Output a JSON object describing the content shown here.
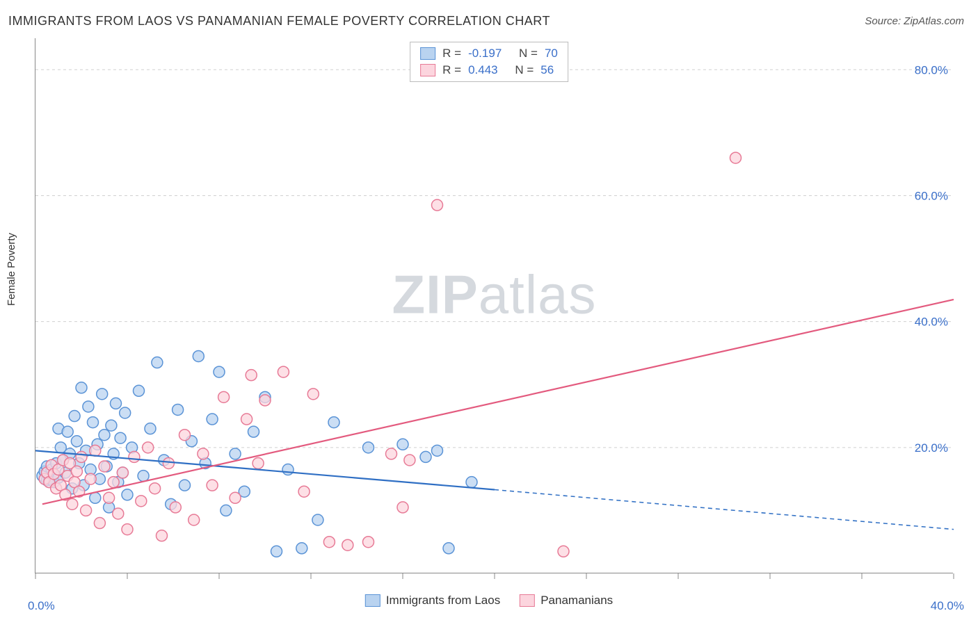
{
  "title": "IMMIGRANTS FROM LAOS VS PANAMANIAN FEMALE POVERTY CORRELATION CHART",
  "source_label": "Source:",
  "source_name": "ZipAtlas.com",
  "ylabel": "Female Poverty",
  "watermark_a": "ZIP",
  "watermark_b": "atlas",
  "chart": {
    "type": "scatter",
    "background_color": "#ffffff",
    "grid_color": "#d0d0d0",
    "axis_color": "#888888",
    "tick_label_color": "#3a6fc9",
    "xlim": [
      0,
      40
    ],
    "ylim": [
      0,
      85
    ],
    "y_ticks": [
      20,
      40,
      60,
      80
    ],
    "y_tick_labels": [
      "20.0%",
      "40.0%",
      "60.0%",
      "80.0%"
    ],
    "x_tick_positions": [
      0,
      4,
      8,
      12,
      16,
      20,
      24,
      28,
      32,
      36,
      40
    ],
    "x_tick_labels": {
      "0": "0.0%",
      "40": "40.0%"
    },
    "marker_radius": 8,
    "marker_stroke_width": 1.5,
    "trend_line_width": 2.2,
    "series": [
      {
        "name": "Immigrants from Laos",
        "legend_label": "Immigrants from Laos",
        "fill_color": "#b9d3f0",
        "stroke_color": "#5a93d6",
        "line_color": "#2f6fc4",
        "R": "-0.197",
        "N": "70",
        "trend": {
          "x1": 0,
          "y1": 19.5,
          "x2": 20,
          "y2": 13.3,
          "dash_x2": 40,
          "dash_y2": 7.0
        },
        "points": [
          [
            0.3,
            15.5
          ],
          [
            0.4,
            16.2
          ],
          [
            0.5,
            14.8
          ],
          [
            0.5,
            17.0
          ],
          [
            0.6,
            15.0
          ],
          [
            0.7,
            16.5
          ],
          [
            0.8,
            14.5
          ],
          [
            0.9,
            17.5
          ],
          [
            1.0,
            15.2
          ],
          [
            1.0,
            23.0
          ],
          [
            1.1,
            20.0
          ],
          [
            1.2,
            18.0
          ],
          [
            1.3,
            16.0
          ],
          [
            1.4,
            22.5
          ],
          [
            1.5,
            19.0
          ],
          [
            1.6,
            13.5
          ],
          [
            1.7,
            25.0
          ],
          [
            1.8,
            21.0
          ],
          [
            1.9,
            17.5
          ],
          [
            2.0,
            29.5
          ],
          [
            2.1,
            14.0
          ],
          [
            2.2,
            19.5
          ],
          [
            2.3,
            26.5
          ],
          [
            2.4,
            16.5
          ],
          [
            2.5,
            24.0
          ],
          [
            2.6,
            12.0
          ],
          [
            2.7,
            20.5
          ],
          [
            2.8,
            15.0
          ],
          [
            2.9,
            28.5
          ],
          [
            3.0,
            22.0
          ],
          [
            3.1,
            17.0
          ],
          [
            3.2,
            10.5
          ],
          [
            3.3,
            23.5
          ],
          [
            3.4,
            19.0
          ],
          [
            3.5,
            27.0
          ],
          [
            3.6,
            14.5
          ],
          [
            3.7,
            21.5
          ],
          [
            3.8,
            16.0
          ],
          [
            3.9,
            25.5
          ],
          [
            4.0,
            12.5
          ],
          [
            4.2,
            20.0
          ],
          [
            4.5,
            29.0
          ],
          [
            4.7,
            15.5
          ],
          [
            5.0,
            23.0
          ],
          [
            5.3,
            33.5
          ],
          [
            5.6,
            18.0
          ],
          [
            5.9,
            11.0
          ],
          [
            6.2,
            26.0
          ],
          [
            6.5,
            14.0
          ],
          [
            6.8,
            21.0
          ],
          [
            7.1,
            34.5
          ],
          [
            7.4,
            17.5
          ],
          [
            7.7,
            24.5
          ],
          [
            8.0,
            32.0
          ],
          [
            8.3,
            10.0
          ],
          [
            8.7,
            19.0
          ],
          [
            9.1,
            13.0
          ],
          [
            9.5,
            22.5
          ],
          [
            10.0,
            28.0
          ],
          [
            10.5,
            3.5
          ],
          [
            11.0,
            16.5
          ],
          [
            11.6,
            4.0
          ],
          [
            12.3,
            8.5
          ],
          [
            13.0,
            24.0
          ],
          [
            14.5,
            20.0
          ],
          [
            16.0,
            20.5
          ],
          [
            17.0,
            18.5
          ],
          [
            17.5,
            19.5
          ],
          [
            18.0,
            4.0
          ],
          [
            19.0,
            14.5
          ]
        ]
      },
      {
        "name": "Panamanians",
        "legend_label": "Panamanians",
        "fill_color": "#fcd5de",
        "stroke_color": "#e77a96",
        "line_color": "#e35a7e",
        "R": "0.443",
        "N": "56",
        "trend": {
          "x1": 0.3,
          "y1": 11.0,
          "x2": 40,
          "y2": 43.5
        },
        "points": [
          [
            0.4,
            15.0
          ],
          [
            0.5,
            16.0
          ],
          [
            0.6,
            14.5
          ],
          [
            0.7,
            17.2
          ],
          [
            0.8,
            15.8
          ],
          [
            0.9,
            13.5
          ],
          [
            1.0,
            16.5
          ],
          [
            1.1,
            14.0
          ],
          [
            1.2,
            18.0
          ],
          [
            1.3,
            12.5
          ],
          [
            1.4,
            15.5
          ],
          [
            1.5,
            17.5
          ],
          [
            1.6,
            11.0
          ],
          [
            1.7,
            14.5
          ],
          [
            1.8,
            16.2
          ],
          [
            1.9,
            13.0
          ],
          [
            2.0,
            18.5
          ],
          [
            2.2,
            10.0
          ],
          [
            2.4,
            15.0
          ],
          [
            2.6,
            19.5
          ],
          [
            2.8,
            8.0
          ],
          [
            3.0,
            17.0
          ],
          [
            3.2,
            12.0
          ],
          [
            3.4,
            14.5
          ],
          [
            3.6,
            9.5
          ],
          [
            3.8,
            16.0
          ],
          [
            4.0,
            7.0
          ],
          [
            4.3,
            18.5
          ],
          [
            4.6,
            11.5
          ],
          [
            4.9,
            20.0
          ],
          [
            5.2,
            13.5
          ],
          [
            5.5,
            6.0
          ],
          [
            5.8,
            17.5
          ],
          [
            6.1,
            10.5
          ],
          [
            6.5,
            22.0
          ],
          [
            6.9,
            8.5
          ],
          [
            7.3,
            19.0
          ],
          [
            7.7,
            14.0
          ],
          [
            8.2,
            28.0
          ],
          [
            8.7,
            12.0
          ],
          [
            9.2,
            24.5
          ],
          [
            9.4,
            31.5
          ],
          [
            9.7,
            17.5
          ],
          [
            10.0,
            27.5
          ],
          [
            10.8,
            32.0
          ],
          [
            11.7,
            13.0
          ],
          [
            12.1,
            28.5
          ],
          [
            12.8,
            5.0
          ],
          [
            13.6,
            4.5
          ],
          [
            14.5,
            5.0
          ],
          [
            15.5,
            19.0
          ],
          [
            16.0,
            10.5
          ],
          [
            16.3,
            18.0
          ],
          [
            17.5,
            58.5
          ],
          [
            23.0,
            3.5
          ],
          [
            30.5,
            66.0
          ]
        ]
      }
    ]
  },
  "legend_top": {
    "R_label": "R =",
    "N_label": "N ="
  }
}
